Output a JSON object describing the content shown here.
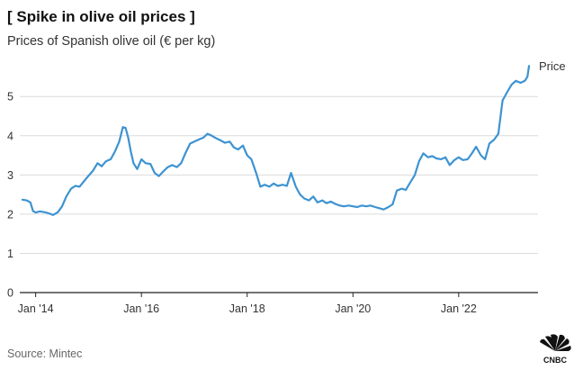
{
  "title": "[ Spike in olive oil prices ]",
  "subtitle": "Prices of Spanish olive oil (€ per kg)",
  "source": "Source: Mintec",
  "logo": {
    "name": "CNBC",
    "icon": "cnbc-peacock-logo"
  },
  "colors": {
    "line": "#3d93d1",
    "grid": "#dcdcdc",
    "axis": "#222222",
    "text": "#333333"
  },
  "chart_data": {
    "type": "line",
    "title": "[ Spike in olive oil prices ]",
    "subtitle": "Prices of Spanish olive oil (€ per kg)",
    "xlabel": "",
    "ylabel": "",
    "x_ticks": [
      {
        "t": 2014.0,
        "label": "Jan '14"
      },
      {
        "t": 2016.0,
        "label": "Jan '16"
      },
      {
        "t": 2018.0,
        "label": "Jan '18"
      },
      {
        "t": 2020.0,
        "label": "Jan '20"
      },
      {
        "t": 2022.0,
        "label": "Jan '22"
      }
    ],
    "y_ticks": [
      0,
      1,
      2,
      3,
      4,
      5
    ],
    "xlim": [
      2013.7,
      2023.5
    ],
    "ylim": [
      0,
      5.9
    ],
    "grid": true,
    "series": [
      {
        "name": "Price",
        "points": [
          [
            2013.75,
            2.37
          ],
          [
            2013.83,
            2.35
          ],
          [
            2013.9,
            2.3
          ],
          [
            2013.95,
            2.08
          ],
          [
            2014.0,
            2.04
          ],
          [
            2014.08,
            2.07
          ],
          [
            2014.17,
            2.05
          ],
          [
            2014.25,
            2.02
          ],
          [
            2014.33,
            1.98
          ],
          [
            2014.42,
            2.05
          ],
          [
            2014.5,
            2.2
          ],
          [
            2014.58,
            2.45
          ],
          [
            2014.67,
            2.65
          ],
          [
            2014.75,
            2.72
          ],
          [
            2014.83,
            2.7
          ],
          [
            2014.92,
            2.85
          ],
          [
            2015.0,
            2.98
          ],
          [
            2015.08,
            3.1
          ],
          [
            2015.17,
            3.3
          ],
          [
            2015.25,
            3.22
          ],
          [
            2015.33,
            3.35
          ],
          [
            2015.42,
            3.4
          ],
          [
            2015.5,
            3.6
          ],
          [
            2015.58,
            3.85
          ],
          [
            2015.65,
            4.22
          ],
          [
            2015.7,
            4.2
          ],
          [
            2015.75,
            3.95
          ],
          [
            2015.8,
            3.6
          ],
          [
            2015.85,
            3.3
          ],
          [
            2015.92,
            3.15
          ],
          [
            2016.0,
            3.4
          ],
          [
            2016.08,
            3.3
          ],
          [
            2016.17,
            3.28
          ],
          [
            2016.25,
            3.05
          ],
          [
            2016.33,
            2.97
          ],
          [
            2016.42,
            3.1
          ],
          [
            2016.5,
            3.2
          ],
          [
            2016.58,
            3.25
          ],
          [
            2016.67,
            3.2
          ],
          [
            2016.75,
            3.3
          ],
          [
            2016.83,
            3.55
          ],
          [
            2016.92,
            3.8
          ],
          [
            2017.0,
            3.85
          ],
          [
            2017.08,
            3.9
          ],
          [
            2017.17,
            3.95
          ],
          [
            2017.25,
            4.05
          ],
          [
            2017.33,
            4.0
          ],
          [
            2017.42,
            3.93
          ],
          [
            2017.5,
            3.88
          ],
          [
            2017.58,
            3.82
          ],
          [
            2017.67,
            3.85
          ],
          [
            2017.75,
            3.7
          ],
          [
            2017.83,
            3.65
          ],
          [
            2017.92,
            3.75
          ],
          [
            2018.0,
            3.5
          ],
          [
            2018.08,
            3.4
          ],
          [
            2018.17,
            3.05
          ],
          [
            2018.25,
            2.7
          ],
          [
            2018.33,
            2.75
          ],
          [
            2018.42,
            2.7
          ],
          [
            2018.5,
            2.78
          ],
          [
            2018.58,
            2.72
          ],
          [
            2018.67,
            2.75
          ],
          [
            2018.75,
            2.72
          ],
          [
            2018.83,
            3.05
          ],
          [
            2018.92,
            2.7
          ],
          [
            2019.0,
            2.5
          ],
          [
            2019.08,
            2.4
          ],
          [
            2019.17,
            2.35
          ],
          [
            2019.25,
            2.45
          ],
          [
            2019.33,
            2.3
          ],
          [
            2019.42,
            2.35
          ],
          [
            2019.5,
            2.28
          ],
          [
            2019.58,
            2.32
          ],
          [
            2019.67,
            2.26
          ],
          [
            2019.75,
            2.22
          ],
          [
            2019.83,
            2.2
          ],
          [
            2019.92,
            2.22
          ],
          [
            2020.0,
            2.2
          ],
          [
            2020.08,
            2.18
          ],
          [
            2020.17,
            2.22
          ],
          [
            2020.25,
            2.2
          ],
          [
            2020.33,
            2.22
          ],
          [
            2020.42,
            2.18
          ],
          [
            2020.5,
            2.15
          ],
          [
            2020.58,
            2.12
          ],
          [
            2020.67,
            2.18
          ],
          [
            2020.75,
            2.25
          ],
          [
            2020.83,
            2.6
          ],
          [
            2020.92,
            2.65
          ],
          [
            2021.0,
            2.62
          ],
          [
            2021.08,
            2.8
          ],
          [
            2021.17,
            3.0
          ],
          [
            2021.25,
            3.35
          ],
          [
            2021.33,
            3.55
          ],
          [
            2021.42,
            3.45
          ],
          [
            2021.5,
            3.48
          ],
          [
            2021.58,
            3.42
          ],
          [
            2021.67,
            3.4
          ],
          [
            2021.75,
            3.45
          ],
          [
            2021.83,
            3.25
          ],
          [
            2021.92,
            3.38
          ],
          [
            2022.0,
            3.45
          ],
          [
            2022.08,
            3.38
          ],
          [
            2022.17,
            3.4
          ],
          [
            2022.25,
            3.55
          ],
          [
            2022.33,
            3.72
          ],
          [
            2022.42,
            3.5
          ],
          [
            2022.5,
            3.4
          ],
          [
            2022.58,
            3.8
          ],
          [
            2022.67,
            3.9
          ],
          [
            2022.75,
            4.05
          ],
          [
            2022.83,
            4.9
          ],
          [
            2022.92,
            5.12
          ],
          [
            2023.0,
            5.3
          ],
          [
            2023.08,
            5.4
          ],
          [
            2023.17,
            5.35
          ],
          [
            2023.25,
            5.4
          ],
          [
            2023.3,
            5.5
          ],
          [
            2023.33,
            5.78
          ]
        ]
      }
    ]
  }
}
